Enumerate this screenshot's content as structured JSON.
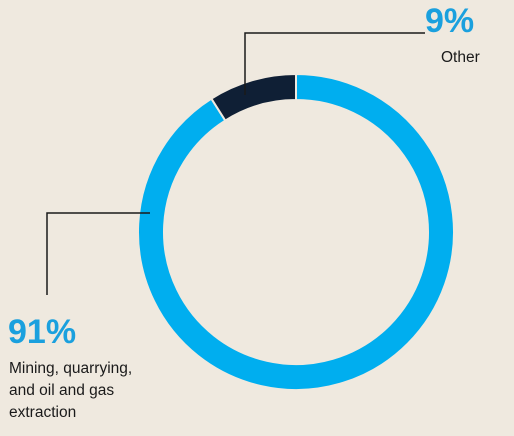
{
  "chart_data": {
    "type": "pie",
    "subtype": "donut",
    "slices": [
      {
        "label": "Mining, quarrying, and oil and gas extraction",
        "value": 91,
        "value_label": "91%",
        "color": "#00aeef"
      },
      {
        "label": "Other",
        "value": 9,
        "value_label": "9%",
        "color": "#0f1f35"
      }
    ]
  },
  "labels": {
    "mining_pct": "91%",
    "mining_text": "Mining, quarrying,\nand oil and gas\nextraction",
    "other_pct": "9%",
    "other_text": "Other"
  }
}
